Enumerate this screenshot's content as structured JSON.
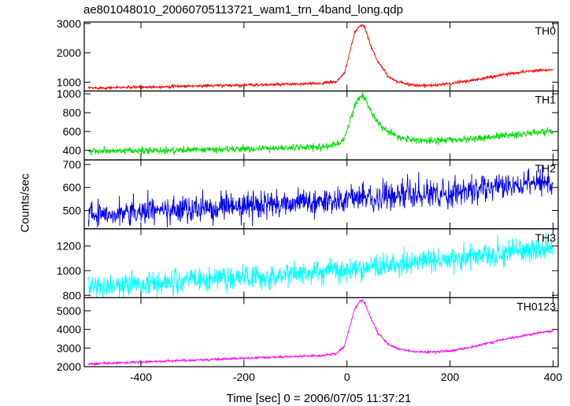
{
  "chart_data": {
    "type": "line",
    "title": "ae801048010_20060705113721_wam1_trn_4band_long.qdp",
    "xlabel": "Time [sec] 0 = 2006/07/05 11:37:21",
    "ylabel": "Counts/sec",
    "xlim": [
      -510,
      410
    ],
    "x_ticks": [
      -400,
      -200,
      0,
      200,
      400
    ],
    "panels": [
      {
        "name": "TH0",
        "color": "#ff0000",
        "ylim": [
          700,
          3050
        ],
        "y_ticks": [
          1000,
          2000,
          3000
        ],
        "noise": 25,
        "x": [
          -500,
          -400,
          -300,
          -200,
          -100,
          -50,
          -20,
          -5,
          5,
          15,
          25,
          30,
          35,
          45,
          60,
          80,
          100,
          130,
          160,
          200,
          250,
          300,
          350,
          380,
          400
        ],
        "values": [
          800,
          830,
          870,
          900,
          930,
          960,
          1020,
          1300,
          2000,
          2700,
          2900,
          2950,
          2850,
          2300,
          1700,
          1200,
          1000,
          900,
          880,
          950,
          1080,
          1250,
          1370,
          1420,
          1420
        ]
      },
      {
        "name": "TH1",
        "color": "#00dd00",
        "ylim": [
          300,
          1030
        ],
        "y_ticks": [
          400,
          600,
          800,
          1000
        ],
        "noise": 18,
        "x": [
          -500,
          -400,
          -300,
          -200,
          -100,
          -50,
          -20,
          -5,
          5,
          15,
          25,
          30,
          35,
          45,
          60,
          80,
          100,
          130,
          160,
          200,
          250,
          300,
          350,
          380,
          400
        ],
        "values": [
          390,
          395,
          405,
          415,
          430,
          440,
          460,
          530,
          700,
          880,
          960,
          980,
          950,
          830,
          700,
          590,
          540,
          510,
          505,
          510,
          525,
          555,
          580,
          595,
          600
        ]
      },
      {
        "name": "TH2",
        "color": "#0000ee",
        "ylim": [
          420,
          720
        ],
        "y_ticks": [
          500,
          600,
          700
        ],
        "noise": 28,
        "x": [
          -500,
          -400,
          -300,
          -200,
          -100,
          0,
          100,
          200,
          300,
          400
        ],
        "values": [
          488,
          495,
          505,
          518,
          532,
          548,
          563,
          578,
          600,
          625
        ]
      },
      {
        "name": "TH3",
        "color": "#00ffff",
        "ylim": [
          780,
          1340
        ],
        "y_ticks": [
          800,
          1000,
          1200
        ],
        "noise": 48,
        "x": [
          -500,
          -400,
          -300,
          -200,
          -100,
          0,
          100,
          200,
          300,
          400
        ],
        "values": [
          870,
          890,
          920,
          950,
          975,
          1010,
          1050,
          1100,
          1140,
          1180
        ]
      },
      {
        "name": "TH0123",
        "color": "#ff00ff",
        "ylim": [
          2000,
          5700
        ],
        "y_ticks": [
          2000,
          3000,
          4000,
          5000
        ],
        "noise": 30,
        "x": [
          -500,
          -400,
          -300,
          -200,
          -100,
          -50,
          -20,
          -5,
          5,
          15,
          25,
          30,
          35,
          45,
          60,
          80,
          100,
          130,
          160,
          200,
          250,
          300,
          350,
          380,
          400
        ],
        "values": [
          2150,
          2250,
          2350,
          2450,
          2550,
          2600,
          2700,
          3100,
          4100,
          5100,
          5500,
          5550,
          5400,
          4700,
          3800,
          3200,
          2950,
          2800,
          2780,
          2850,
          3100,
          3450,
          3700,
          3850,
          3900
        ]
      }
    ]
  }
}
